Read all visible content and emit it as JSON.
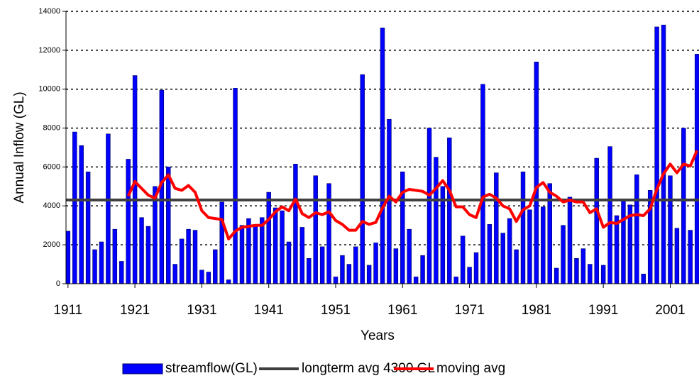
{
  "chart_data": {
    "type": "bar",
    "x_label": "Years",
    "y_label": "Annual Inflow (GL)",
    "x": [
      1911,
      1912,
      1913,
      1914,
      1915,
      1916,
      1917,
      1918,
      1919,
      1920,
      1921,
      1922,
      1923,
      1924,
      1925,
      1926,
      1927,
      1928,
      1929,
      1930,
      1931,
      1932,
      1933,
      1934,
      1935,
      1936,
      1937,
      1938,
      1939,
      1940,
      1941,
      1942,
      1943,
      1944,
      1945,
      1946,
      1947,
      1948,
      1949,
      1950,
      1951,
      1952,
      1953,
      1954,
      1955,
      1956,
      1957,
      1958,
      1959,
      1960,
      1961,
      1962,
      1963,
      1964,
      1965,
      1966,
      1967,
      1968,
      1969,
      1970,
      1971,
      1972,
      1973,
      1974,
      1975,
      1976,
      1977,
      1978,
      1979,
      1980,
      1981,
      1982,
      1983,
      1984,
      1985,
      1986,
      1987,
      1988,
      1989,
      1990,
      1991,
      1992,
      1993,
      1994,
      1995,
      1996,
      1997,
      1998,
      1999,
      2000,
      2001,
      2002,
      2003,
      2004,
      2005
    ],
    "series": [
      {
        "name": "streamflow(GL)",
        "type": "bar",
        "color": "#0000ff",
        "values": [
          2700,
          7800,
          7100,
          5750,
          1750,
          2150,
          7700,
          2800,
          1150,
          6400,
          10700,
          3400,
          2950,
          5000,
          9950,
          6000,
          1000,
          2300,
          2800,
          2750,
          700,
          600,
          1750,
          4200,
          200,
          10050,
          3000,
          3350,
          3050,
          3400,
          4700,
          3900,
          3750,
          2150,
          6150,
          2900,
          1300,
          5550,
          1900,
          5150,
          350,
          1450,
          1000,
          1900,
          10750,
          950,
          2100,
          13150,
          8450,
          1800,
          5750,
          2800,
          350,
          1450,
          8000,
          6500,
          5000,
          7500,
          350,
          2450,
          850,
          1600,
          10250,
          3050,
          5700,
          2600,
          3350,
          1750,
          5750,
          3800,
          11400,
          3950,
          5150,
          800,
          3000,
          4450,
          1300,
          1800,
          1000,
          6450,
          950,
          7050,
          3500,
          4250,
          4050,
          5600,
          500,
          4800,
          13200,
          13300,
          5550,
          2850,
          8000,
          2750,
          11800
        ]
      },
      {
        "name": "moving avg",
        "type": "line",
        "color": "#ff0000",
        "values": [
          null,
          null,
          null,
          null,
          null,
          null,
          null,
          null,
          null,
          4500,
          5250,
          4900,
          4550,
          4400,
          5200,
          5600,
          4900,
          4800,
          5050,
          4700,
          3750,
          3400,
          3350,
          3300,
          2300,
          2700,
          2900,
          2950,
          3000,
          3000,
          3300,
          3700,
          3950,
          3750,
          4350,
          3600,
          3400,
          3650,
          3550,
          3700,
          3250,
          3050,
          2750,
          2750,
          3200,
          3050,
          3150,
          3900,
          4500,
          4200,
          4700,
          4850,
          4800,
          4750,
          4550,
          4900,
          5300,
          4800,
          3950,
          3950,
          3550,
          3400,
          4450,
          4600,
          4400,
          4000,
          3850,
          3200,
          3800,
          4000,
          4950,
          5200,
          4700,
          4500,
          4200,
          4300,
          4200,
          4200,
          3650,
          3850,
          2900,
          3150,
          3100,
          3300,
          3500,
          3550,
          3500,
          3850,
          4850,
          5650,
          6150,
          5700,
          6150,
          6050,
          6850
        ]
      }
    ],
    "hline": {
      "name": "longterm avg 4300 GL",
      "value": 4300,
      "color": "#404040"
    },
    "legend_order": [
      "chart_data.series.0",
      "chart_data.hline",
      "chart_data.series.1"
    ],
    "xlim": [
      1910.7,
      2005.3
    ],
    "xticks": [
      1911,
      1921,
      1931,
      1941,
      1951,
      1961,
      1971,
      1981,
      1991,
      2001
    ],
    "ylim": [
      0,
      14000
    ],
    "yticks": [
      0,
      2000,
      4000,
      6000,
      8000,
      10000,
      12000,
      14000
    ],
    "grid": true
  }
}
